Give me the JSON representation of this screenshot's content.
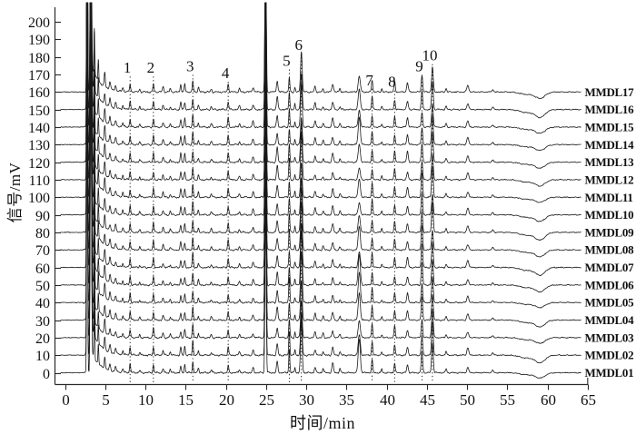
{
  "figure": {
    "background": "#ffffff"
  },
  "chart_data": {
    "type": "line",
    "title": "",
    "xlabel": "时间/min",
    "ylabel": "信号/mV",
    "xlim": [
      0,
      65
    ],
    "ylim": [
      0,
      200
    ],
    "grid": false,
    "legend_position": "right-of-each-trace",
    "x_ticks": [
      0,
      5,
      10,
      15,
      20,
      25,
      30,
      35,
      40,
      45,
      50,
      55,
      60,
      65
    ],
    "y_ticks": [
      0,
      10,
      20,
      30,
      40,
      50,
      60,
      70,
      80,
      90,
      100,
      110,
      120,
      130,
      140,
      150,
      160,
      170,
      180,
      190,
      200
    ],
    "line_color": "#1a1a1a",
    "axis_color": "#2a2a2a",
    "text_color": "#111111",
    "trace_offset_mV": 10,
    "trace_labels": [
      "MMDL01",
      "MMDL02",
      "MMDL03",
      "MMDL04",
      "MMDL05",
      "MMDL06",
      "MMDL07",
      "MMDL08",
      "MMDL09",
      "MMDL10",
      "MMDL11",
      "MMDL12",
      "MMDL13",
      "MMDL14",
      "MMDL15",
      "MMDL16",
      "MMDL17"
    ],
    "numbered_peaks": [
      {
        "n": "1",
        "t": 8.1,
        "amp": 4.5,
        "sigma": 0.07,
        "label_mV": 174
      },
      {
        "n": "2",
        "t": 11.0,
        "amp": 5.0,
        "sigma": 0.07,
        "label_mV": 174
      },
      {
        "n": "3",
        "t": 15.9,
        "amp": 7.0,
        "sigma": 0.07,
        "label_mV": 175
      },
      {
        "n": "4",
        "t": 20.3,
        "amp": 4.5,
        "sigma": 0.07,
        "label_mV": 171
      },
      {
        "n": "5",
        "t": 27.9,
        "amp": 13,
        "sigma": 0.07,
        "label_mV": 178,
        "vary": [
          0.75,
          1.15
        ],
        "taper": 0.2
      },
      {
        "n": "6",
        "t": 29.4,
        "amp": 30,
        "sigma": 0.1,
        "label_mV": 187,
        "vary": [
          0.7,
          1.2
        ],
        "taper": 0.35
      },
      {
        "n": "7",
        "t": 38.2,
        "amp": 7.0,
        "sigma": 0.08,
        "label_mV": 167
      },
      {
        "n": "8",
        "t": 41.0,
        "amp": 5.5,
        "sigma": 0.08,
        "label_mV": 166
      },
      {
        "n": "9",
        "t": 44.4,
        "amp": 13,
        "sigma": 0.09,
        "label_mV": 175,
        "vary": [
          0.8,
          1.3
        ],
        "taper": 0.25
      },
      {
        "n": "10",
        "t": 45.7,
        "amp": 16,
        "sigma": 0.1,
        "label_mV": 181,
        "vary": [
          0.8,
          1.35
        ],
        "taper": 0.25
      }
    ],
    "other_peaks": [
      {
        "t": 2.76,
        "amp": 210,
        "sigma": 0.055,
        "vary": [
          0.95,
          1.1
        ]
      },
      {
        "t": 3.22,
        "amp": 210,
        "sigma": 0.07,
        "vary": [
          0.95,
          1.1
        ]
      },
      {
        "t": 3.65,
        "amp": 28,
        "sigma": 0.05
      },
      {
        "t": 4.15,
        "amp": 10,
        "sigma": 0.05
      },
      {
        "t": 4.95,
        "amp": 7,
        "sigma": 0.07
      },
      {
        "t": 5.6,
        "amp": 4,
        "sigma": 0.08
      },
      {
        "t": 6.3,
        "amp": 3,
        "sigma": 0.08
      },
      {
        "t": 7.2,
        "amp": 2,
        "sigma": 0.07
      },
      {
        "t": 9.3,
        "amp": 1.5,
        "sigma": 0.07
      },
      {
        "t": 12.2,
        "amp": 2.5,
        "sigma": 0.08
      },
      {
        "t": 13.1,
        "amp": 1.8,
        "sigma": 0.07
      },
      {
        "t": 14.4,
        "amp": 4,
        "sigma": 0.07
      },
      {
        "t": 14.9,
        "amp": 4.5,
        "sigma": 0.07
      },
      {
        "t": 16.6,
        "amp": 2.5,
        "sigma": 0.07
      },
      {
        "t": 18.2,
        "amp": 1.6,
        "sigma": 0.08
      },
      {
        "t": 21.7,
        "amp": 1.8,
        "sigma": 0.08
      },
      {
        "t": 23.4,
        "amp": 2.8,
        "sigma": 0.09
      },
      {
        "t": 24.95,
        "amp": 100,
        "sigma": 0.075,
        "vary": [
          0.9,
          1.15
        ]
      },
      {
        "t": 26.4,
        "amp": 7,
        "sigma": 0.09
      },
      {
        "t": 28.6,
        "amp": 3,
        "sigma": 0.06
      },
      {
        "t": 31.1,
        "amp": 3.5,
        "sigma": 0.09
      },
      {
        "t": 32.1,
        "amp": 2,
        "sigma": 0.08
      },
      {
        "t": 33.3,
        "amp": 4.5,
        "sigma": 0.1
      },
      {
        "t": 34.2,
        "amp": 1.8,
        "sigma": 0.08
      },
      {
        "t": 36.6,
        "amp": 8,
        "sigma": 0.13,
        "vary": [
          0.5,
          2.6
        ],
        "taper": 0.3
      },
      {
        "t": 39.4,
        "amp": 1.8,
        "sigma": 0.07
      },
      {
        "t": 42.6,
        "amp": 5,
        "sigma": 0.1
      },
      {
        "t": 47.4,
        "amp": 1.8,
        "sigma": 0.08
      },
      {
        "t": 50.1,
        "amp": 3.5,
        "sigma": 0.12
      },
      {
        "t": 53.2,
        "amp": 1.2,
        "sigma": 0.1
      }
    ],
    "solvent_tail": {
      "t0": 3.3,
      "amp": 13,
      "tau": 1.05
    },
    "baseline_dip": [
      {
        "t": 57.4,
        "amp": -1.3,
        "sigma": 0.8
      },
      {
        "t": 59.1,
        "amp": -3.4,
        "sigma": 0.6
      }
    ],
    "noise_mV": 0.5,
    "clip_mV": 213.5
  }
}
